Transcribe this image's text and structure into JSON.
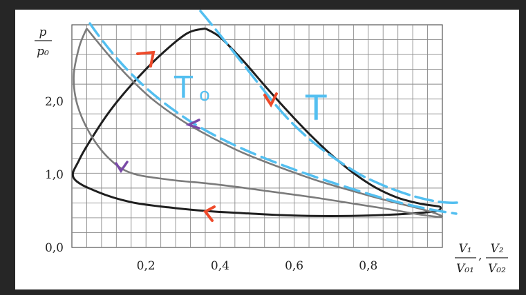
{
  "chart_data": {
    "type": "line",
    "y_axis": {
      "label_num": "p",
      "label_den": "p₀",
      "ticks": [
        {
          "value": 0.0,
          "label": "0,0"
        },
        {
          "value": 1.0,
          "label": "1,0"
        },
        {
          "value": 2.0,
          "label": "2,0"
        }
      ],
      "ylim": [
        0,
        3.05
      ]
    },
    "x_axis": {
      "label_1_num": "V₁",
      "label_1_den": "V₀₁",
      "label_sep": ",",
      "label_2_num": "V₂",
      "label_2_den": "V₀₂",
      "ticks": [
        {
          "value": 0.2,
          "label": "0,2"
        },
        {
          "value": 0.4,
          "label": "0,4"
        },
        {
          "value": 0.6,
          "label": "0,6"
        },
        {
          "value": 0.8,
          "label": "0,8"
        }
      ],
      "xlim": [
        0,
        1.0
      ]
    },
    "grid": true,
    "series": [
      {
        "color": "#1f1f1f",
        "points": [
          [
            0.36,
            3.0
          ],
          [
            0.4,
            2.88
          ],
          [
            0.46,
            2.57
          ],
          [
            0.52,
            2.22
          ],
          [
            0.58,
            1.88
          ],
          [
            0.64,
            1.56
          ],
          [
            0.7,
            1.27
          ],
          [
            0.76,
            1.02
          ],
          [
            0.82,
            0.82
          ],
          [
            0.88,
            0.68
          ],
          [
            0.94,
            0.6
          ],
          [
            0.98,
            0.57
          ],
          [
            0.995,
            0.55
          ],
          [
            0.985,
            0.5
          ],
          [
            0.93,
            0.47
          ],
          [
            0.82,
            0.44
          ],
          [
            0.7,
            0.43
          ],
          [
            0.58,
            0.44
          ],
          [
            0.46,
            0.47
          ],
          [
            0.36,
            0.5
          ],
          [
            0.26,
            0.55
          ],
          [
            0.16,
            0.62
          ],
          [
            0.07,
            0.76
          ],
          [
            0.005,
            0.95
          ],
          [
            0.02,
            1.2
          ],
          [
            0.06,
            1.55
          ],
          [
            0.11,
            1.92
          ],
          [
            0.17,
            2.28
          ],
          [
            0.24,
            2.64
          ],
          [
            0.31,
            2.93
          ],
          [
            0.36,
            3.0
          ]
        ]
      },
      {
        "color": "#7b7b7b",
        "points": [
          [
            0.04,
            3.0
          ],
          [
            0.1,
            2.63
          ],
          [
            0.16,
            2.3
          ],
          [
            0.22,
            2.02
          ],
          [
            0.3,
            1.73
          ],
          [
            0.38,
            1.5
          ],
          [
            0.46,
            1.3
          ],
          [
            0.56,
            1.1
          ],
          [
            0.66,
            0.92
          ],
          [
            0.76,
            0.77
          ],
          [
            0.86,
            0.63
          ],
          [
            0.94,
            0.53
          ],
          [
            0.995,
            0.44
          ],
          [
            0.99,
            0.42
          ],
          [
            0.94,
            0.45
          ],
          [
            0.86,
            0.52
          ],
          [
            0.76,
            0.6
          ],
          [
            0.66,
            0.68
          ],
          [
            0.56,
            0.75
          ],
          [
            0.46,
            0.82
          ],
          [
            0.36,
            0.88
          ],
          [
            0.26,
            0.93
          ],
          [
            0.16,
            1.02
          ],
          [
            0.1,
            1.22
          ],
          [
            0.05,
            1.55
          ],
          [
            0.015,
            1.95
          ],
          [
            0.005,
            2.35
          ],
          [
            0.02,
            2.75
          ],
          [
            0.04,
            3.0
          ]
        ]
      }
    ],
    "annotations": [
      {
        "text": "T₀",
        "color": "#53bff0"
      },
      {
        "text": "T",
        "color": "#53bff0"
      }
    ]
  },
  "annotations_text": {
    "t0": "T",
    "t0_sub": "o",
    "t": "T"
  },
  "colors": {
    "dark_curve": "#1f1f1f",
    "gray_curve": "#7b7b7b",
    "hand_blue": "#53bff0",
    "arrow_red": "#ee4a2a",
    "arrow_purple": "#7a4aa8"
  }
}
